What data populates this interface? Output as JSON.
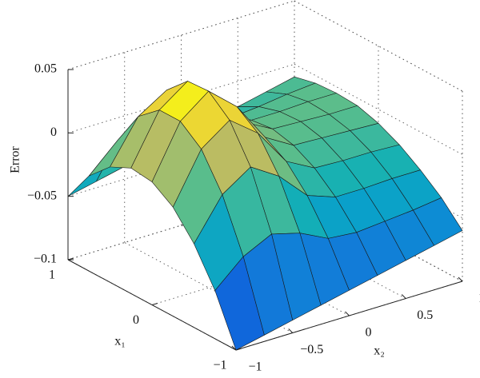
{
  "chart_data": {
    "type": "surface",
    "z_label": "Error",
    "x1_label": "x₁",
    "x2_label": "x₂",
    "colormap": "parula",
    "x1": [
      -1,
      -0.75,
      -0.5,
      -0.25,
      0,
      0.25,
      0.5,
      0.75,
      1
    ],
    "x2": [
      -1,
      -0.75,
      -0.5,
      -0.25,
      0,
      0.25,
      0.5,
      0.75,
      1
    ],
    "z": [
      [
        -0.1,
        -0.095,
        -0.09,
        -0.085,
        -0.08,
        -0.075,
        -0.07,
        -0.065,
        -0.06
      ],
      [
        -0.062,
        -0.042,
        -0.031,
        -0.037,
        -0.048,
        -0.05,
        -0.048,
        -0.046,
        -0.043
      ],
      [
        -0.034,
        -0.002,
        0.013,
        -0.001,
        -0.023,
        -0.031,
        -0.031,
        -0.03,
        -0.03
      ],
      [
        -0.014,
        0.025,
        0.041,
        0.024,
        -0.005,
        -0.017,
        -0.018,
        -0.018,
        -0.019
      ],
      [
        -0.003,
        0.038,
        0.055,
        0.036,
        0.005,
        -0.008,
        -0.009,
        -0.01,
        -0.011
      ],
      [
        -0.001,
        0.038,
        0.054,
        0.036,
        0.008,
        -0.004,
        -0.005,
        -0.006,
        -0.006
      ],
      [
        -0.009,
        0.024,
        0.038,
        0.025,
        0.003,
        -0.006,
        -0.006,
        -0.005,
        -0.005
      ],
      [
        -0.025,
        -0.004,
        0.006,
        0.001,
        -0.01,
        -0.013,
        -0.011,
        -0.008,
        -0.006
      ],
      [
        -0.05,
        -0.045,
        -0.04,
        -0.035,
        -0.03,
        -0.025,
        -0.02,
        -0.015,
        -0.01
      ]
    ],
    "x1lim": [
      -1,
      1
    ],
    "x2lim": [
      -1,
      1
    ],
    "zlim": [
      -0.1,
      0.05
    ],
    "x1ticks": [
      {
        "value": -1,
        "label": "−1"
      },
      0,
      1
    ],
    "x2ticks": [
      {
        "value": -1,
        "label": "−1"
      },
      {
        "value": -0.5,
        "label": "−0.5"
      },
      0,
      0.5,
      1
    ],
    "zticks": [
      {
        "value": -0.1,
        "label": "−0.1"
      },
      {
        "value": -0.05,
        "label": "−0.05"
      },
      0,
      0.05
    ],
    "grid": true
  }
}
